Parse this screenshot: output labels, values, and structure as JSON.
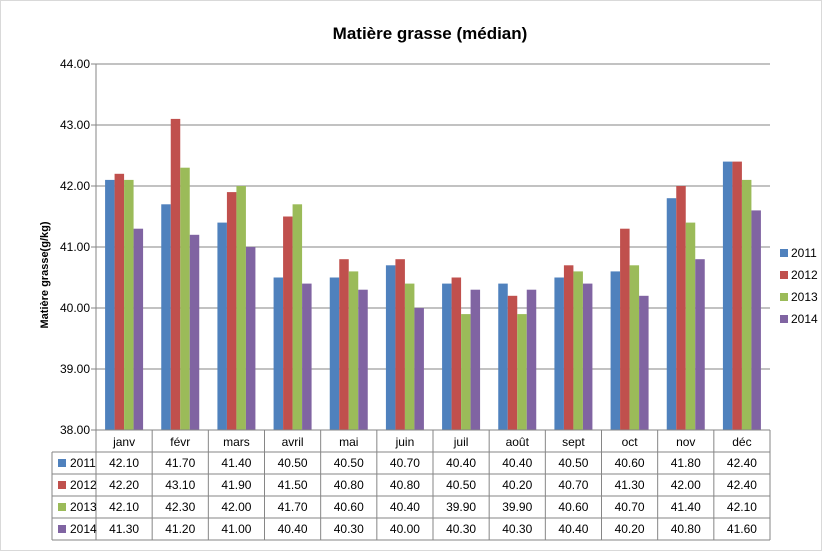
{
  "chart_data": {
    "type": "bar",
    "title": "Matière grasse  (médian)",
    "xlabel": "",
    "ylabel": "Matière grasse(g/kg)",
    "ylim": [
      38,
      44
    ],
    "yticks": [
      "38.00",
      "39.00",
      "40.00",
      "41.00",
      "42.00",
      "43.00",
      "44.00"
    ],
    "grid": true,
    "legend_position": "right",
    "categories": [
      "janv",
      "févr",
      "mars",
      "avril",
      "mai",
      "juin",
      "juil",
      "août",
      "sept",
      "oct",
      "nov",
      "déc"
    ],
    "series": [
      {
        "name": "2011",
        "color": "#4f81bd",
        "values": [
          42.1,
          41.7,
          41.4,
          40.5,
          40.5,
          40.7,
          40.4,
          40.4,
          40.5,
          40.6,
          41.8,
          42.4
        ],
        "labels": [
          "42.10",
          "41.70",
          "41.40",
          "40.50",
          "40.50",
          "40.70",
          "40.40",
          "40.40",
          "40.50",
          "40.60",
          "41.80",
          "42.40"
        ]
      },
      {
        "name": "2012",
        "color": "#c0504d",
        "values": [
          42.2,
          43.1,
          41.9,
          41.5,
          40.8,
          40.8,
          40.5,
          40.2,
          40.7,
          41.3,
          42.0,
          42.4
        ],
        "labels": [
          "42.20",
          "43.10",
          "41.90",
          "41.50",
          "40.80",
          "40.80",
          "40.50",
          "40.20",
          "40.70",
          "41.30",
          "42.00",
          "42.40"
        ]
      },
      {
        "name": "2013",
        "color": "#9bbb59",
        "values": [
          42.1,
          42.3,
          42.0,
          41.7,
          40.6,
          40.4,
          39.9,
          39.9,
          40.6,
          40.7,
          41.4,
          42.1
        ],
        "labels": [
          "42.10",
          "42.30",
          "42.00",
          "41.70",
          "40.60",
          "40.40",
          "39.90",
          "39.90",
          "40.60",
          "40.70",
          "41.40",
          "42.10"
        ]
      },
      {
        "name": "2014",
        "color": "#8064a2",
        "values": [
          41.3,
          41.2,
          41.0,
          40.4,
          40.3,
          40.0,
          40.3,
          40.3,
          40.4,
          40.2,
          40.8,
          41.6
        ],
        "labels": [
          "41.30",
          "41.20",
          "41.00",
          "40.40",
          "40.30",
          "40.00",
          "40.30",
          "40.30",
          "40.40",
          "40.20",
          "40.80",
          "41.60"
        ]
      }
    ]
  }
}
